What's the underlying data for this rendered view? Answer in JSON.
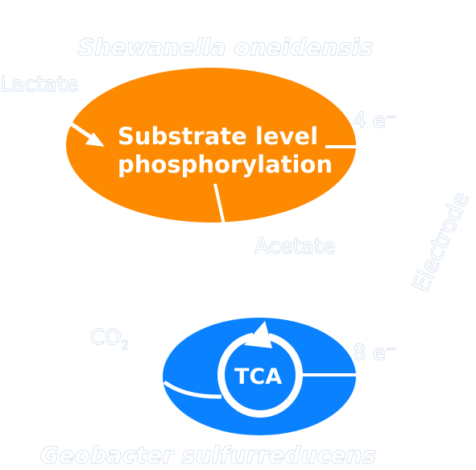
{
  "top_organism": {
    "name": "Shewanella oneidensis",
    "substrate": "Lactate",
    "process_line1": "Substrate level",
    "process_line2": "phosphorylation",
    "product": "Acetate",
    "electrons": "4 e⁻",
    "fill_color": "#fd8a00"
  },
  "bottom_organism": {
    "name": "Geobacter sulfurreducens",
    "product_main": "CO",
    "product_sub": "2",
    "cycle": "TCA",
    "electrons": "8 e⁻",
    "fill_color": "#0a82ff"
  },
  "electrode_label": "Electrode"
}
